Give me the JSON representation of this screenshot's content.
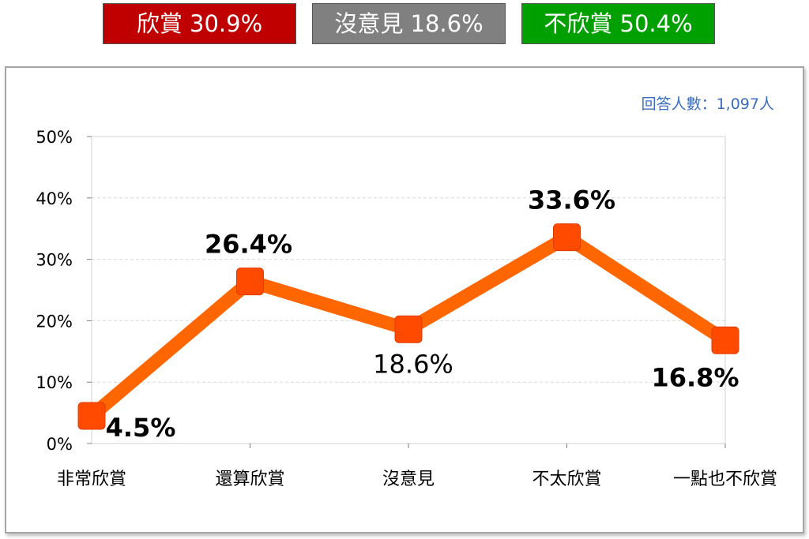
{
  "summary": {
    "approve": {
      "label": "欣賞 30.9%",
      "color": "#c00000"
    },
    "neutral": {
      "label": "沒意見 18.6%",
      "color": "#808080"
    },
    "disapprove": {
      "label": "不欣賞 50.4%",
      "color": "#00a000"
    }
  },
  "respondents": "回答人數：1,097人",
  "chart_data": {
    "type": "line",
    "categories": [
      "非常欣賞",
      "還算欣賞",
      "沒意見",
      "不太欣賞",
      "一點也不欣賞"
    ],
    "values": [
      4.5,
      26.4,
      18.6,
      33.6,
      16.8
    ],
    "data_labels": [
      "4.5%",
      "26.4%",
      "18.6%",
      "33.6%",
      "16.8%"
    ],
    "ylim": [
      0,
      50
    ],
    "yticks": [
      "0%",
      "10%",
      "20%",
      "30%",
      "40%",
      "50%"
    ],
    "grid": true,
    "line_color": "#ff6600",
    "marker_color": "#ff4a00"
  }
}
